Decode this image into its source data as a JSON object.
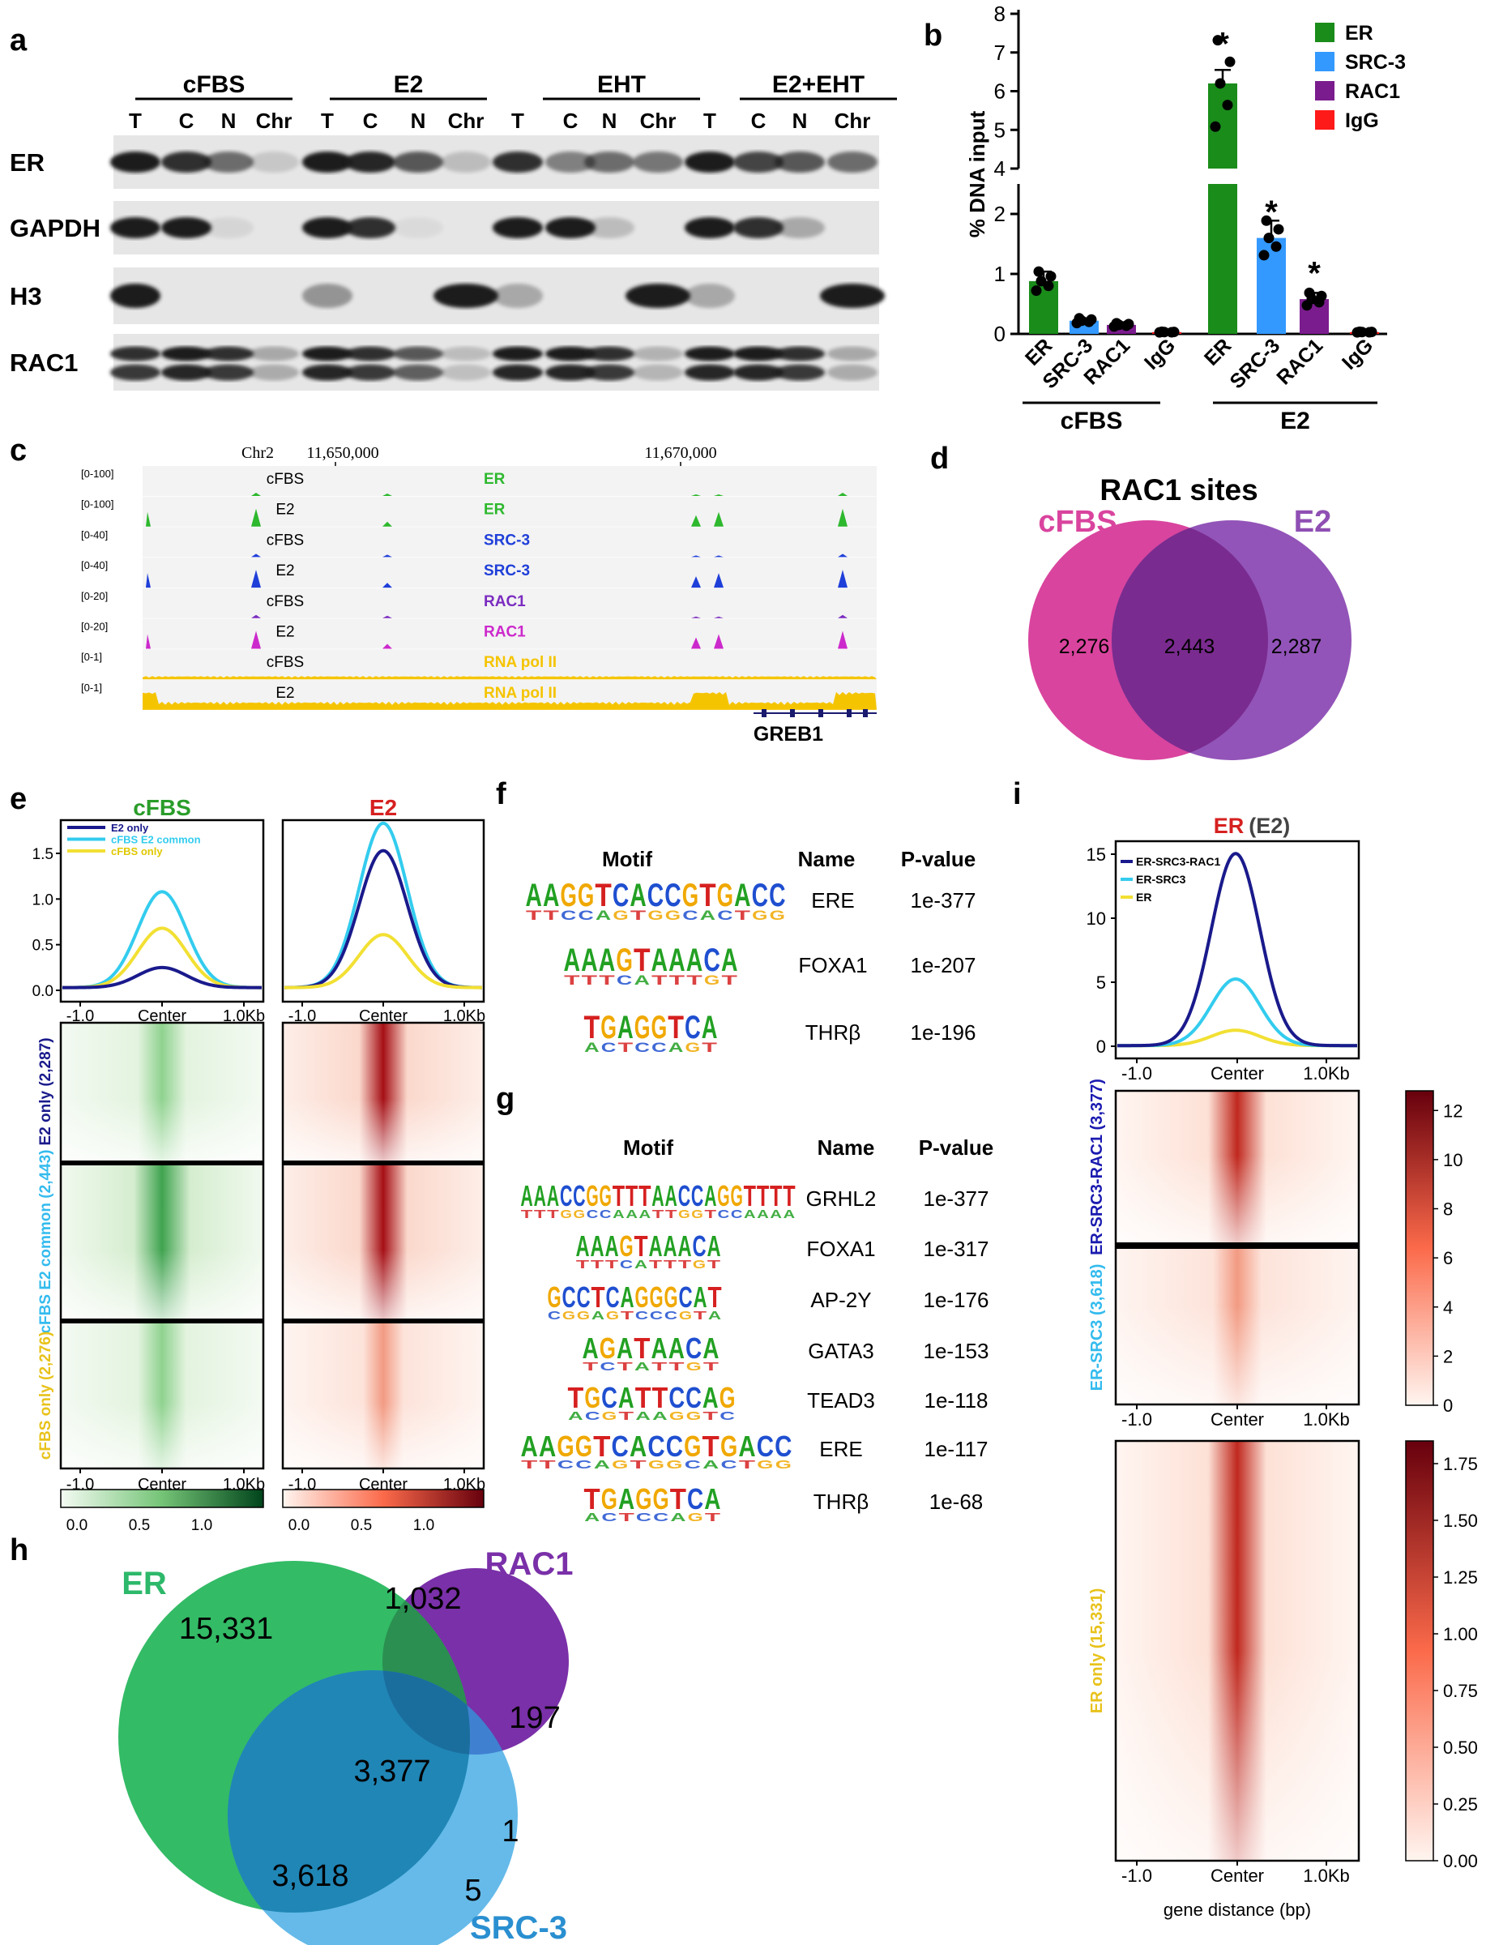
{
  "panels": {
    "a": "a",
    "b": "b",
    "c": "c",
    "d": "d",
    "e": "e",
    "f": "f",
    "g": "g",
    "h": "h",
    "i": "i"
  },
  "panel_a": {
    "groups": [
      "cFBS",
      "E2",
      "EHT",
      "E2+EHT"
    ],
    "lanes": [
      "T",
      "C",
      "N",
      "Chr"
    ],
    "rows": [
      "ER",
      "GAPDH",
      "H3",
      "RAC1"
    ],
    "colors": {
      "band": "#1a1a1a",
      "membrane": "#e6e6e6"
    }
  },
  "chart_b": {
    "type": "bar",
    "ylabel": "% DNA input",
    "groups": [
      "cFBS",
      "E2"
    ],
    "categories": [
      "ER",
      "SRC-3",
      "RAC1",
      "IgG",
      "ER",
      "SRC-3",
      "RAC1",
      "IgG"
    ],
    "values": [
      0.88,
      0.22,
      0.15,
      0.03,
      6.2,
      1.6,
      0.58,
      0.03
    ],
    "colors": [
      "#1a8c1a",
      "#3399ff",
      "#7b1c8e",
      "#ff1a1a",
      "#1a8c1a",
      "#3399ff",
      "#7b1c8e",
      "#ff1a1a"
    ],
    "significance": [
      "",
      "",
      "",
      "",
      "*",
      "*",
      "*",
      ""
    ],
    "axis_break": [
      2.4,
      4
    ],
    "low_ticks": [
      "0",
      "1",
      "2"
    ],
    "high_ticks": [
      "4",
      "5",
      "6",
      "7",
      "8"
    ],
    "legend": [
      {
        "label": "ER",
        "color": "#1a8c1a"
      },
      {
        "label": "SRC-3",
        "color": "#3399ff"
      },
      {
        "label": "RAC1",
        "color": "#7b1c8e"
      },
      {
        "label": "IgG",
        "color": "#ff1a1a"
      }
    ]
  },
  "panel_c": {
    "chrom": "Chr2",
    "pos1": "11,650,000",
    "pos2": "11,670,000",
    "tracks": [
      {
        "range": "[0-100]",
        "cond": "cFBS",
        "factor": "ER",
        "color": "#2db82d"
      },
      {
        "range": "[0-100]",
        "cond": "E2",
        "factor": "ER",
        "color": "#2db82d"
      },
      {
        "range": "[0-40]",
        "cond": "cFBS",
        "factor": "SRC-3",
        "color": "#1f3fd9"
      },
      {
        "range": "[0-40]",
        "cond": "E2",
        "factor": "SRC-3",
        "color": "#1f3fd9"
      },
      {
        "range": "[0-20]",
        "cond": "cFBS",
        "factor": "RAC1",
        "color": "#7b2cc0"
      },
      {
        "range": "[0-20]",
        "cond": "E2",
        "factor": "RAC1",
        "color": "#cc29cc"
      },
      {
        "range": "[0-1]",
        "cond": "cFBS",
        "factor": "RNA pol II",
        "color": "#f5c400"
      },
      {
        "range": "[0-1]",
        "cond": "E2",
        "factor": "RNA pol II",
        "color": "#f5c400"
      }
    ],
    "gene": "GREB1"
  },
  "venn_d": {
    "title": "RAC1 sites",
    "left_label": "cFBS",
    "right_label": "E2",
    "left_only": "2,276",
    "common": "2,443",
    "right_only": "2,287",
    "colors": {
      "left": "#d9449e",
      "right": "#8f4fb3",
      "overlap": "#7a2b8f"
    }
  },
  "panel_e": {
    "col_left": "cFBS",
    "col_right": "E2",
    "legend": [
      {
        "label": "E2 only",
        "color": "#1a1a8c"
      },
      {
        "label": "cFBS E2 common",
        "color": "#33ccee"
      },
      {
        "label": "cFBS only",
        "color": "#f2e033"
      }
    ],
    "profile_ticks": [
      "0.0",
      "0.5",
      "1.0",
      "1.5"
    ],
    "xticks": [
      "-1.0",
      "Center",
      "1.0Kb"
    ],
    "row_labels": [
      "E2 only (2,287)",
      "cFBS E2 common (2,443)",
      "cFBS only (2,276)"
    ],
    "row_label_colors": [
      "#1a1a8c",
      "#33bbee",
      "#e8c21a"
    ],
    "cbar_green": [
      "0.0",
      "0.5",
      "1.0"
    ],
    "cbar_red": [
      "0.0",
      "0.5",
      "1.0"
    ],
    "profile_peaks": {
      "left": [
        0.22,
        1.05,
        0.65
      ],
      "right": [
        1.5,
        1.8,
        0.58
      ]
    }
  },
  "panel_f": {
    "headers": [
      "Motif",
      "Name",
      "P-value"
    ],
    "rows": [
      {
        "motif": "AAGGTCACCGTGACC",
        "name": "ERE",
        "p": "1e-377"
      },
      {
        "motif": "AAAGTAAACA",
        "name": "FOXA1",
        "p": "1e-207"
      },
      {
        "motif": "TGAGGTCA",
        "name": "THRβ",
        "p": "1e-196"
      }
    ]
  },
  "panel_g": {
    "headers": [
      "Motif",
      "Name",
      "P-value"
    ],
    "rows": [
      {
        "motif": "AAACCGGTTTAACCAGGTTTT",
        "name": "GRHL2",
        "p": "1e-377"
      },
      {
        "motif": "AAAGTAAACA",
        "name": "FOXA1",
        "p": "1e-317"
      },
      {
        "motif": "GCCTCAGGGCAT",
        "name": "AP-2Y",
        "p": "1e-176"
      },
      {
        "motif": "AGATAACA",
        "name": "GATA3",
        "p": "1e-153"
      },
      {
        "motif": "TGCATTCCAG",
        "name": "TEAD3",
        "p": "1e-118"
      },
      {
        "motif": "AAGGTCACCGTGACC",
        "name": "ERE",
        "p": "1e-117"
      },
      {
        "motif": "TGAGGTCA",
        "name": "THRβ",
        "p": "1e-68"
      }
    ]
  },
  "venn_h": {
    "labels": {
      "er": "ER",
      "rac1": "RAC1",
      "src3": "SRC-3"
    },
    "values": {
      "er_only": "15,331",
      "er_rac1": "1,032",
      "rac1_only": "197",
      "all": "3,377",
      "rac1_src3": "1",
      "er_src3": "3,618",
      "src3_only": "5"
    },
    "colors": {
      "er": "#33bb66",
      "rac1": "#7a30a8",
      "src3": "#2a8fd0"
    }
  },
  "panel_i": {
    "title_factor": "ER",
    "title_cond": "(E2)",
    "legend": [
      {
        "label": "ER-SRC3-RAC1",
        "color": "#1a1a8c"
      },
      {
        "label": "ER-SRC3",
        "color": "#33ccee"
      },
      {
        "label": "ER",
        "color": "#f2e033"
      }
    ],
    "profile_ticks": [
      "0",
      "5",
      "10",
      "15"
    ],
    "profile_peaks": [
      15,
      5.2,
      1.2
    ],
    "xticks": [
      "-1.0",
      "Center",
      "1.0Kb"
    ],
    "xlabel": "gene distance (bp)",
    "row_labels": [
      "ER-SRC3-RAC1 (3,377)",
      "ER-SRC3 (3,618)",
      "ER only (15,331)"
    ],
    "row_label_colors": [
      "#1a1ab0",
      "#33bbee",
      "#e8c21a"
    ],
    "cbar_top": [
      "0",
      "2",
      "4",
      "6",
      "8",
      "10",
      "12"
    ],
    "cbar_bottom": [
      "0.00",
      "0.25",
      "0.50",
      "0.75",
      "1.00",
      "1.25",
      "1.50",
      "1.75"
    ]
  }
}
